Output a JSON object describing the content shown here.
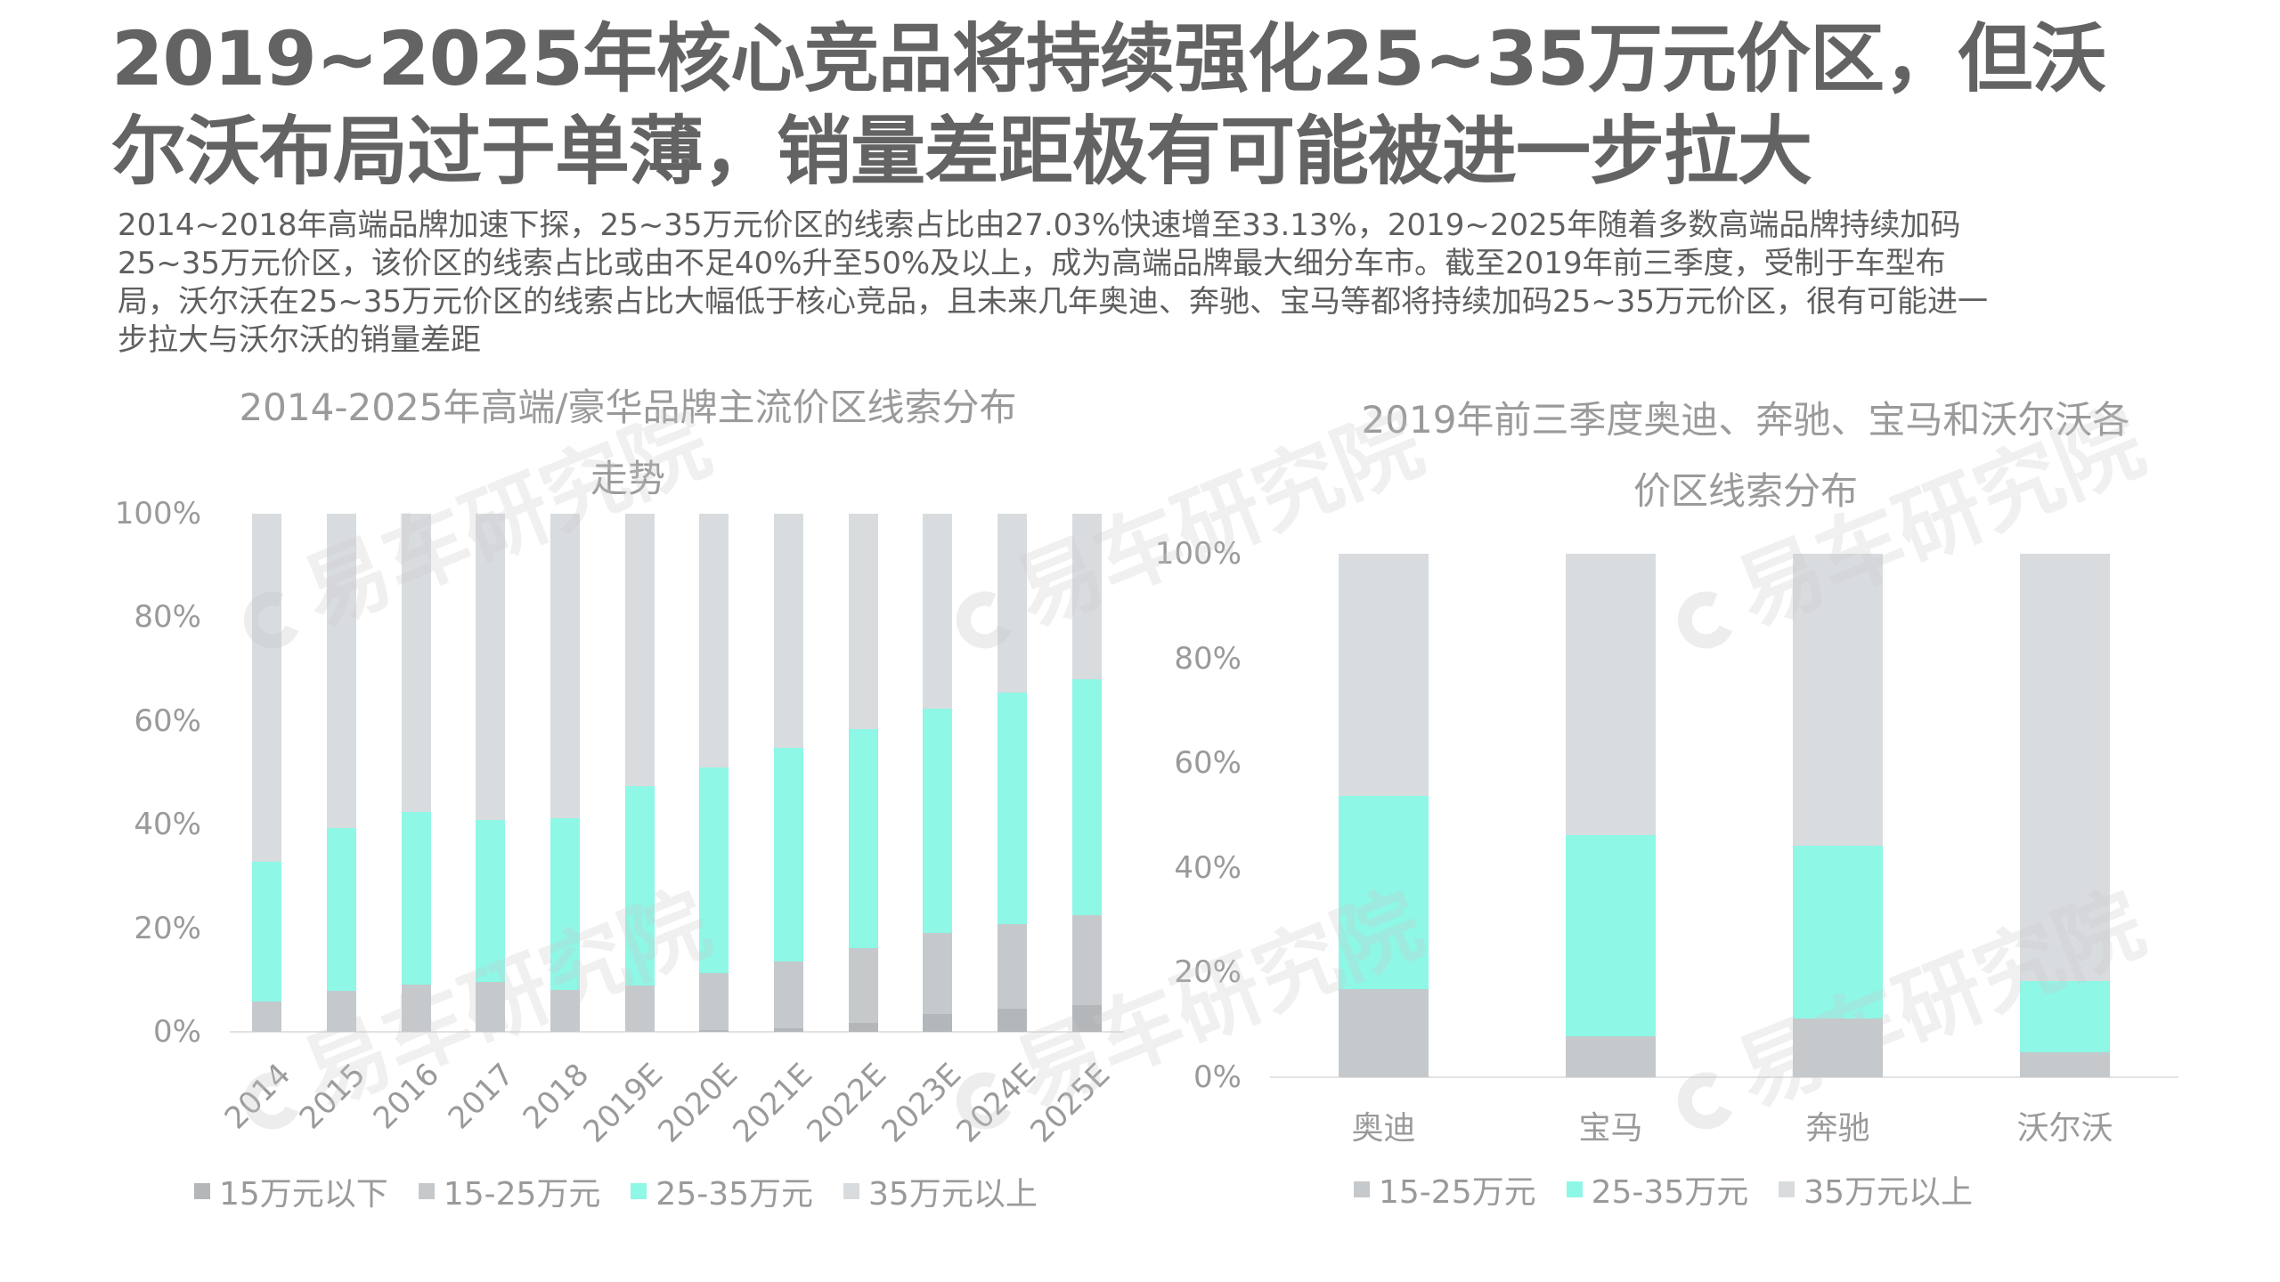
{
  "header": {
    "title_line1": "2019~2025年核心竞品将持续强化25~35万元价区，但沃",
    "title_line2": "尔沃布局过于单薄，销量差距极有可能被进一步拉大",
    "body_lines": [
      "2014~2018年高端品牌加速下探，25~35万元价区的线索占比由27.03%快速增至33.13%，2019~2025年随着多数高端品牌持续加码",
      "25~35万元价区，该价区的线索占比或由不足40%升至50%及以上，成为高端品牌最大细分车市。截至2019年前三季度，受制于车型布",
      "局，沃尔沃在25~35万元价区的线索占比大幅低于核心竞品，且未来几年奥迪、奔驰、宝马等都将持续加码25~35万元价区，很有可能进一",
      "步拉大与沃尔沃的销量差距"
    ]
  },
  "watermark_text": "易车研究院",
  "colors": {
    "below_15": "#B3B7BA",
    "r15_25": "#C5C9CC",
    "r25_35": "#8EF7E6",
    "above_35": "#D8DCDF",
    "axis": "#E2E2E2",
    "text_muted": "#9A9A9A",
    "title": "#636363"
  },
  "chart_data": [
    {
      "type": "bar",
      "stacked": true,
      "title": "2014-2025年高端/豪华品牌主流价区线索分布走势",
      "title_lines": [
        "2014-2025年高端/豪华品牌主流价区线索分布",
        "走势"
      ],
      "xlabel": "",
      "ylabel": "",
      "ylim": [
        0,
        100
      ],
      "yticks": [
        "0%",
        "20%",
        "40%",
        "60%",
        "80%",
        "100%"
      ],
      "grid": false,
      "legend_position": "bottom",
      "categories": [
        "2014",
        "2015",
        "2016",
        "2017",
        "2018",
        "2019E",
        "2020E",
        "2021E",
        "2022E",
        "2023E",
        "2024E",
        "2025E"
      ],
      "series": [
        {
          "name": "15万元以下",
          "color": "#B3B7BA",
          "values": [
            0,
            0,
            0,
            0,
            0,
            0,
            0.3,
            0.7,
            1.8,
            3.5,
            4.5,
            5.2
          ]
        },
        {
          "name": "15-25万元",
          "color": "#C5C9CC",
          "values": [
            5.9,
            7.9,
            9.1,
            9.6,
            8.1,
            8.9,
            11.0,
            12.9,
            14.4,
            15.6,
            16.3,
            17.3
          ]
        },
        {
          "name": "25-35万元",
          "color": "#8EF7E6",
          "values": [
            27.0,
            31.5,
            33.4,
            31.3,
            33.1,
            38.6,
            39.8,
            41.2,
            42.3,
            43.2,
            44.7,
            45.6
          ]
        },
        {
          "name": "35万元以上",
          "color": "#D8DCDF",
          "values": [
            67.1,
            60.6,
            57.5,
            59.1,
            58.8,
            52.5,
            48.9,
            45.2,
            41.5,
            37.7,
            34.5,
            31.9
          ]
        }
      ]
    },
    {
      "type": "bar",
      "stacked": true,
      "title": "2019年前三季度奥迪、奔驰、宝马和沃尔沃各价区线索分布",
      "title_lines": [
        "2019年前三季度奥迪、奔驰、宝马和沃尔沃各",
        "价区线索分布"
      ],
      "xlabel": "",
      "ylabel": "",
      "ylim": [
        0,
        100
      ],
      "yticks": [
        "0%",
        "20%",
        "40%",
        "60%",
        "80%",
        "100%"
      ],
      "grid": false,
      "legend_position": "bottom",
      "categories": [
        "奥迪",
        "宝马",
        "奔驰",
        "沃尔沃"
      ],
      "series": [
        {
          "name": "15-25万元",
          "color": "#C5C9CC",
          "values": [
            16.9,
            7.9,
            11.3,
            4.8
          ]
        },
        {
          "name": "25-35万元",
          "color": "#8EF7E6",
          "values": [
            36.9,
            38.4,
            32.9,
            13.6
          ]
        },
        {
          "name": "35万元以上",
          "color": "#D8DCDF",
          "values": [
            46.2,
            53.7,
            55.8,
            81.6
          ]
        }
      ]
    }
  ]
}
